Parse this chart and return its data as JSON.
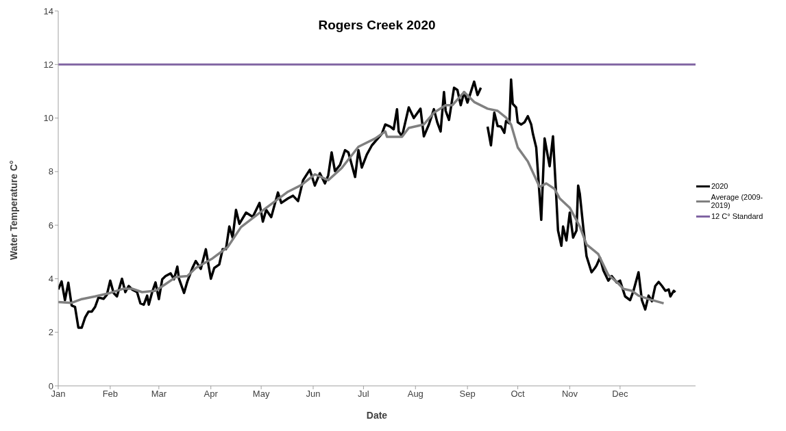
{
  "chart_data": {
    "type": "line",
    "title": "Rogers Creek 2020",
    "xlabel": "Date",
    "ylabel": "Water Temperature C°",
    "xlim": [
      "2020-01-01",
      "2021-01-15"
    ],
    "xticks": [
      {
        "value": "2020-01-01",
        "label": "Jan"
      },
      {
        "value": "2020-02-01",
        "label": "Feb"
      },
      {
        "value": "2020-03-01",
        "label": "Mar"
      },
      {
        "value": "2020-04-01",
        "label": "Apr"
      },
      {
        "value": "2020-05-01",
        "label": "May"
      },
      {
        "value": "2020-06-01",
        "label": "Jun"
      },
      {
        "value": "2020-07-01",
        "label": "Jul"
      },
      {
        "value": "2020-08-01",
        "label": "Aug"
      },
      {
        "value": "2020-09-01",
        "label": "Sep"
      },
      {
        "value": "2020-10-01",
        "label": "Oct"
      },
      {
        "value": "2020-11-01",
        "label": "Nov"
      },
      {
        "value": "2020-12-01",
        "label": "Dec"
      }
    ],
    "ylim": [
      0,
      14
    ],
    "yticks": [
      0,
      2,
      4,
      6,
      8,
      10,
      12,
      14
    ],
    "grid": false,
    "legend": "right",
    "marker": "none",
    "line_style": "solid",
    "series": [
      {
        "name": "2020",
        "color": "#000000",
        "x": [
          "2020-01-01",
          "2020-01-03",
          "2020-01-05",
          "2020-01-07",
          "2020-01-09",
          "2020-01-11",
          "2020-01-13",
          "2020-01-15",
          "2020-01-17",
          "2020-01-19",
          "2020-01-21",
          "2020-01-23",
          "2020-01-25",
          "2020-01-28",
          "2020-01-30",
          "2020-02-01",
          "2020-02-03",
          "2020-02-05",
          "2020-02-08",
          "2020-02-10",
          "2020-02-12",
          "2020-02-14",
          "2020-02-17",
          "2020-02-19",
          "2020-02-21",
          "2020-02-23",
          "2020-02-24",
          "2020-02-26",
          "2020-02-28",
          "2020-03-01",
          "2020-03-03",
          "2020-03-05",
          "2020-03-08",
          "2020-03-10",
          "2020-03-12",
          "2020-03-13",
          "2020-03-16",
          "2020-03-18",
          "2020-03-21",
          "2020-03-23",
          "2020-03-26",
          "2020-03-29",
          "2020-04-01",
          "2020-04-03",
          "2020-04-06",
          "2020-04-08",
          "2020-04-10",
          "2020-04-12",
          "2020-04-14",
          "2020-04-16",
          "2020-04-18",
          "2020-04-22",
          "2020-04-26",
          "2020-04-30",
          "2020-05-02",
          "2020-05-04",
          "2020-05-07",
          "2020-05-11",
          "2020-05-13",
          "2020-05-17",
          "2020-05-20",
          "2020-05-23",
          "2020-05-26",
          "2020-05-30",
          "2020-06-02",
          "2020-06-05",
          "2020-06-08",
          "2020-06-10",
          "2020-06-12",
          "2020-06-14",
          "2020-06-17",
          "2020-06-20",
          "2020-06-22",
          "2020-06-26",
          "2020-06-28",
          "2020-06-30",
          "2020-07-03",
          "2020-07-06",
          "2020-07-12",
          "2020-07-14",
          "2020-07-17",
          "2020-07-19",
          "2020-07-21",
          "2020-07-22",
          "2020-07-24",
          "2020-07-28",
          "2020-07-31",
          "2020-08-04",
          "2020-08-06",
          "2020-08-09",
          "2020-08-12",
          "2020-08-14",
          "2020-08-16",
          "2020-08-18",
          "2020-08-19",
          "2020-08-21",
          "2020-08-24",
          "2020-08-26",
          "2020-08-28",
          "2020-08-30",
          "2020-09-01",
          "2020-09-03",
          "2020-09-05",
          "2020-09-07",
          "2020-09-09",
          "2020-09-11",
          "2020-09-13",
          "2020-09-15",
          "2020-09-17",
          "2020-09-19",
          "2020-09-21",
          "2020-09-23",
          "2020-09-24",
          "2020-09-26",
          "2020-09-27",
          "2020-09-28",
          "2020-09-30",
          "2020-10-01",
          "2020-10-03",
          "2020-10-05",
          "2020-10-07",
          "2020-10-09",
          "2020-10-10",
          "2020-10-12",
          "2020-10-15",
          "2020-10-17",
          "2020-10-20",
          "2020-10-22",
          "2020-10-24",
          "2020-10-25",
          "2020-10-27",
          "2020-10-28",
          "2020-10-30",
          "2020-11-01",
          "2020-11-03",
          "2020-11-05",
          "2020-11-06",
          "2020-11-07",
          "2020-11-09",
          "2020-11-11",
          "2020-11-14",
          "2020-11-16",
          "2020-11-17",
          "2020-11-19",
          "2020-11-21",
          "2020-11-24",
          "2020-11-26",
          "2020-11-29",
          "2020-12-01",
          "2020-12-04",
          "2020-12-07",
          "2020-12-09",
          "2020-12-12",
          "2020-12-14",
          "2020-12-16",
          "2020-12-18",
          "2020-12-20",
          "2020-12-22",
          "2020-12-24",
          "2020-12-26",
          "2020-12-28",
          "2020-12-30",
          "2020-12-31",
          "2021-01-02",
          "2021-01-03"
        ],
        "values": [
          3.6,
          3.9,
          3.2,
          3.85,
          3.0,
          2.95,
          2.17,
          2.17,
          2.55,
          2.77,
          2.77,
          2.95,
          3.3,
          3.25,
          3.4,
          3.93,
          3.47,
          3.34,
          4.0,
          3.5,
          3.73,
          3.6,
          3.5,
          3.08,
          3.03,
          3.37,
          3.03,
          3.5,
          3.86,
          3.24,
          3.98,
          4.1,
          4.2,
          3.98,
          4.45,
          4.0,
          3.47,
          3.9,
          4.4,
          4.66,
          4.37,
          5.1,
          4.0,
          4.4,
          4.53,
          5.1,
          5.1,
          5.95,
          5.54,
          6.57,
          6.05,
          6.47,
          6.31,
          6.83,
          6.13,
          6.57,
          6.3,
          7.22,
          6.83,
          7.0,
          7.1,
          6.9,
          7.68,
          8.07,
          7.48,
          7.94,
          7.56,
          7.86,
          8.72,
          8.02,
          8.25,
          8.8,
          8.72,
          7.8,
          8.8,
          8.15,
          8.64,
          8.98,
          9.42,
          9.76,
          9.68,
          9.58,
          10.33,
          9.5,
          9.32,
          10.4,
          10.0,
          10.35,
          9.32,
          9.76,
          10.33,
          9.84,
          9.5,
          10.97,
          10.27,
          9.93,
          11.13,
          11.05,
          10.48,
          10.97,
          10.58,
          10.97,
          11.36,
          10.86,
          11.13,
          null,
          9.68,
          8.98,
          10.2,
          9.7,
          9.68,
          9.45,
          9.89,
          9.8,
          11.44,
          10.53,
          10.4,
          9.84,
          9.76,
          9.84,
          10.07,
          9.76,
          9.42,
          8.9,
          6.2,
          9.24,
          8.2,
          9.32,
          7.0,
          5.8,
          5.23,
          5.95,
          5.43,
          6.47,
          5.54,
          5.8,
          7.48,
          7.17,
          5.95,
          4.84,
          4.24,
          4.4,
          4.5,
          4.79,
          4.32,
          3.93,
          4.1,
          3.86,
          3.93,
          3.34,
          3.2,
          3.55,
          4.24,
          3.2,
          2.85,
          3.37,
          3.16,
          3.73,
          3.88,
          3.73,
          3.55,
          3.6,
          3.34,
          3.55,
          3.5
        ]
      },
      {
        "name": "Average (2009-2019)",
        "color": "#808080",
        "x": [
          "2020-01-01",
          "2020-01-09",
          "2020-01-15",
          "2020-01-23",
          "2020-02-01",
          "2020-02-09",
          "2020-02-14",
          "2020-02-20",
          "2020-02-28",
          "2020-03-05",
          "2020-03-11",
          "2020-03-18",
          "2020-03-23",
          "2020-04-02",
          "2020-04-11",
          "2020-04-19",
          "2020-05-03",
          "2020-05-17",
          "2020-05-25",
          "2020-06-02",
          "2020-06-10",
          "2020-06-18",
          "2020-06-28",
          "2020-07-08",
          "2020-07-14",
          "2020-07-15",
          "2020-07-24",
          "2020-07-28",
          "2020-08-06",
          "2020-08-12",
          "2020-08-19",
          "2020-08-23",
          "2020-08-30",
          "2020-09-05",
          "2020-09-13",
          "2020-09-19",
          "2020-09-24",
          "2020-09-27",
          "2020-10-01",
          "2020-10-07",
          "2020-10-14",
          "2020-10-18",
          "2020-10-23",
          "2020-10-26",
          "2020-11-01",
          "2020-11-07",
          "2020-11-11",
          "2020-11-18",
          "2020-11-24",
          "2020-11-29",
          "2020-12-03",
          "2020-12-08",
          "2020-12-12",
          "2020-12-18",
          "2020-12-27"
        ],
        "values": [
          3.13,
          3.1,
          3.24,
          3.34,
          3.47,
          3.63,
          3.63,
          3.5,
          3.55,
          3.8,
          4.06,
          4.1,
          4.4,
          4.76,
          5.18,
          5.93,
          6.6,
          7.25,
          7.5,
          7.9,
          7.68,
          8.13,
          8.93,
          9.24,
          9.5,
          9.3,
          9.3,
          9.63,
          9.76,
          10.2,
          10.48,
          10.48,
          10.97,
          10.6,
          10.35,
          10.27,
          10.02,
          9.76,
          8.9,
          8.38,
          7.43,
          7.56,
          7.35,
          7.0,
          6.65,
          5.95,
          5.28,
          4.92,
          4.14,
          3.88,
          3.62,
          3.55,
          3.37,
          3.24,
          3.08
        ]
      }
    ],
    "ref_lines": [
      {
        "axis": "y",
        "value": 12,
        "label": "12 C° Standard",
        "color": "#8064a2"
      }
    ]
  }
}
